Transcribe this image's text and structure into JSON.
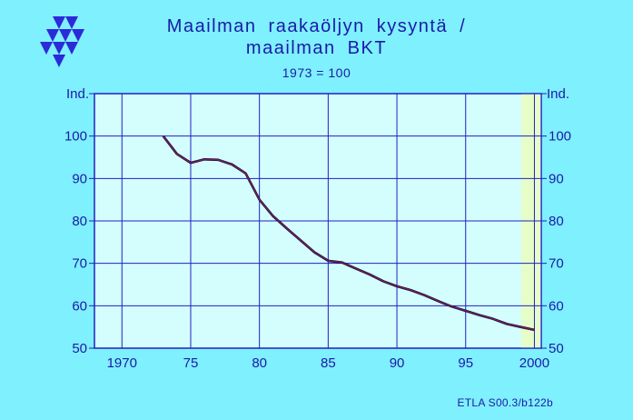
{
  "header": {
    "title_line1": "Maailman raakaöljyn kysyntä /",
    "title_line2": "maailman BKT",
    "subtitle": "1973 = 100"
  },
  "footer": {
    "source": "ETLA S00.3/b122b"
  },
  "colors": {
    "background": "#7ff0fe",
    "plot_area": "#d4fefe",
    "forecast_band": "#e6fdc8",
    "grid": "#2020c0",
    "text": "#1a1aa8",
    "series_line": "#6b1f6e",
    "logo": "#2b2bd8"
  },
  "logo": {
    "icon": "etla-triangles-logo-icon"
  },
  "chart_data": {
    "type": "line",
    "ylabel_left": "Ind.",
    "ylabel_right": "Ind.",
    "xlim": [
      1968,
      2000.5
    ],
    "ylim": [
      50,
      110
    ],
    "x_ticks": [
      1970,
      1975,
      1980,
      1985,
      1990,
      1995,
      2000
    ],
    "x_tick_labels": [
      "1970",
      "75",
      "80",
      "85",
      "90",
      "95",
      "2000"
    ],
    "y_ticks": [
      50,
      60,
      70,
      80,
      90,
      100
    ],
    "y_tick_labels": [
      "50",
      "60",
      "70",
      "80",
      "90",
      "100"
    ],
    "grid": true,
    "forecast_band": [
      1999,
      2000.5
    ],
    "series": [
      {
        "x": [
          1973,
          1974,
          1975,
          1976,
          1977,
          1978,
          1979,
          1980,
          1981,
          1982,
          1983,
          1984,
          1985,
          1986,
          1987,
          1988,
          1989,
          1990,
          1991,
          1992,
          1993,
          1994,
          1995,
          1996,
          1997,
          1998,
          1999,
          2000
        ],
        "values": [
          100,
          95.8,
          93.7,
          94.5,
          94.4,
          93.3,
          91.2,
          85.0,
          81.1,
          78.2,
          75.4,
          72.6,
          70.6,
          70.2,
          68.8,
          67.4,
          65.8,
          64.6,
          63.7,
          62.5,
          61.1,
          59.8,
          58.8,
          57.8,
          56.9,
          55.7,
          55.0,
          54.3
        ]
      }
    ]
  }
}
